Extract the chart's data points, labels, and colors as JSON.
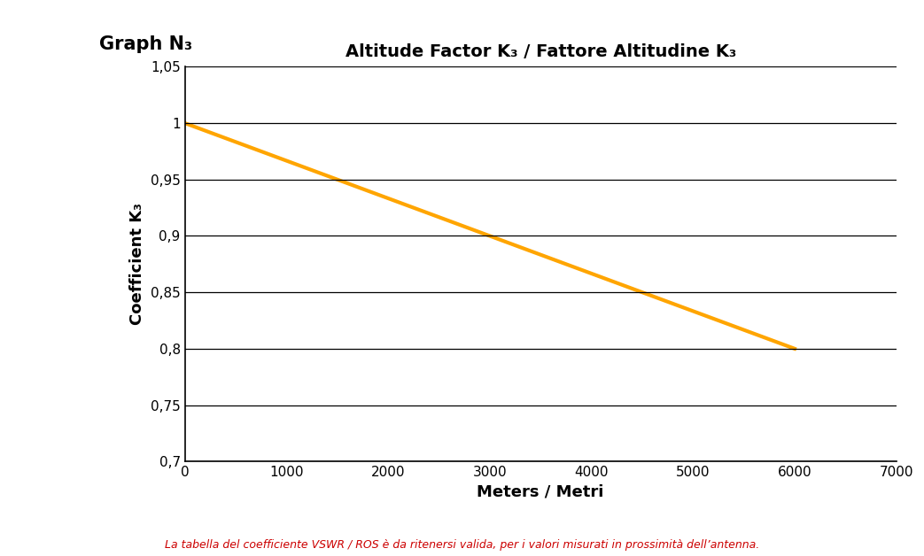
{
  "title": "Altitude Factor K₃ / Fattore Altitudine K₃",
  "graph_label": "Graph N₃",
  "xlabel": "Meters / Metri",
  "ylabel": "Coefficient K₃",
  "footnote": "La tabella del coefficiente VSWR / ROS è da ritenersi valida, per i valori misurati in prossimità dell’antenna.",
  "x_data": [
    0,
    1500,
    3000,
    4500,
    6000
  ],
  "y_data": [
    1.0,
    0.95,
    0.9,
    0.85,
    0.8
  ],
  "line_color": "#FFA500",
  "line_width": 3,
  "xlim": [
    0,
    7000
  ],
  "ylim": [
    0.7,
    1.05
  ],
  "xticks": [
    0,
    1000,
    2000,
    3000,
    4000,
    5000,
    6000,
    7000
  ],
  "yticks": [
    0.7,
    0.75,
    0.8,
    0.85,
    0.9,
    0.95,
    1.0,
    1.05
  ],
  "ytick_labels": [
    "0,7",
    "0,75",
    "0,8",
    "0,85",
    "0,9",
    "0,95",
    "1",
    "1,05"
  ],
  "xtick_labels": [
    "0",
    "1000",
    "2000",
    "3000",
    "4000",
    "5000",
    "6000",
    "7000"
  ],
  "footnote_color": "#CC0000",
  "background_color": "#FFFFFF",
  "grid_color": "#000000",
  "title_fontsize": 14,
  "label_fontsize": 13,
  "tick_fontsize": 11,
  "footnote_fontsize": 9,
  "graph_label_fontsize": 15
}
